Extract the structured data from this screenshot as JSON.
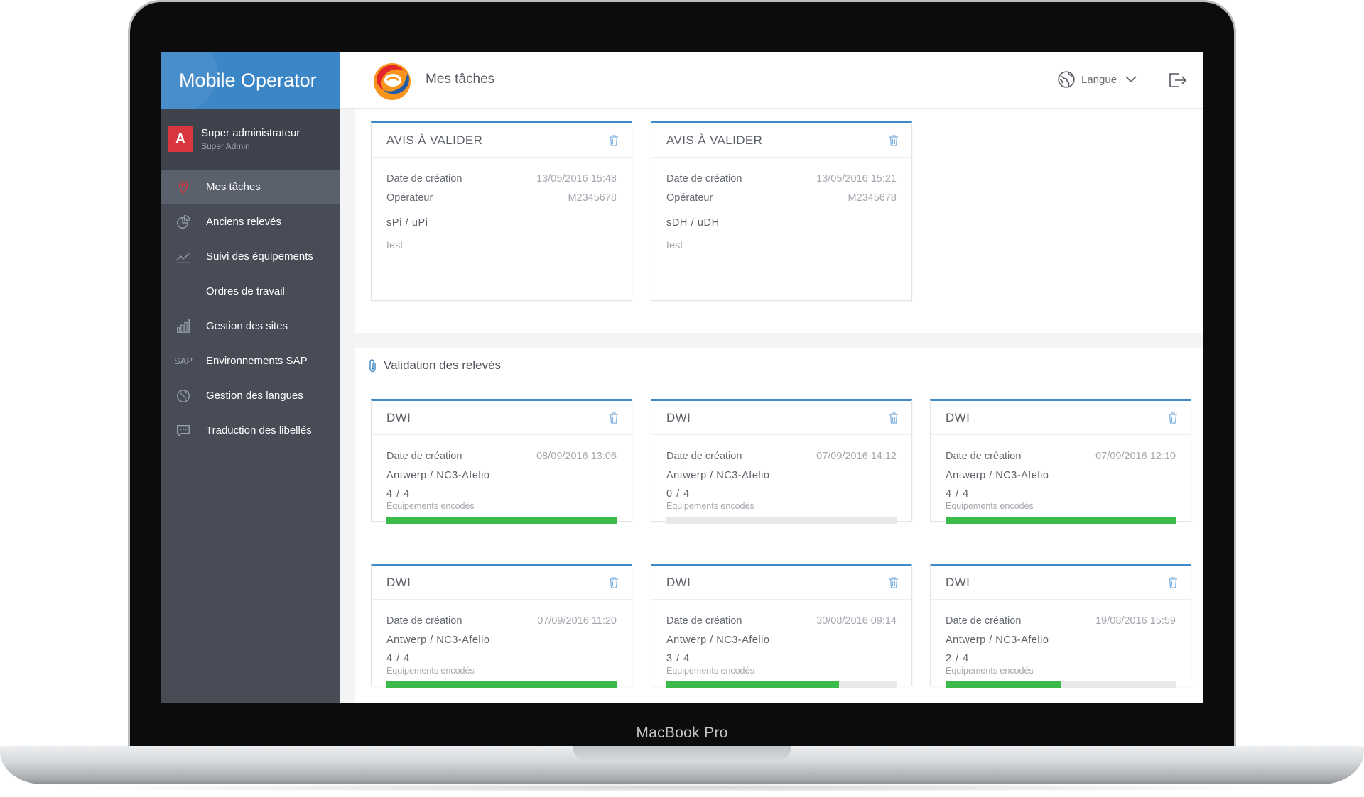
{
  "device": {
    "label": "MacBook Pro"
  },
  "sidebar": {
    "app_title": "Mobile Operator",
    "user": {
      "avatar_letter": "A",
      "name": "Super administrateur",
      "role": "Super Admin"
    },
    "items": [
      {
        "label": "Mes tâches",
        "icon": "map-pin-icon",
        "active": true
      },
      {
        "label": "Anciens relevés",
        "icon": "pie-chart-icon"
      },
      {
        "label": "Suivi des équipements",
        "icon": "trend-line-icon"
      },
      {
        "label": "Ordres de travail",
        "icon": ""
      },
      {
        "label": "Gestion des sites",
        "icon": "bar-chart-icon"
      },
      {
        "label": "Environnements SAP",
        "icon": "sap-icon",
        "icon_text": "SAP"
      },
      {
        "label": "Gestion des langues",
        "icon": "globe-icon"
      },
      {
        "label": "Traduction des libellés",
        "icon": "chat-bubble-icon"
      }
    ]
  },
  "header": {
    "page_title": "Mes tâches",
    "language_label": "Langue"
  },
  "notices": {
    "cards": [
      {
        "title": "AVIS À VALIDER",
        "created_label": "Date de création",
        "created_value": "13/05/2016 15:48",
        "operator_label": "Opérateur",
        "operator_value": "M2345678",
        "type": "sPi / uPi",
        "comment": "test"
      },
      {
        "title": "AVIS À VALIDER",
        "created_label": "Date de création",
        "created_value": "13/05/2016 15:21",
        "operator_label": "Opérateur",
        "operator_value": "M2345678",
        "type": "sDH / uDH",
        "comment": "test"
      }
    ]
  },
  "validation": {
    "title": "Validation des relevés",
    "cards": [
      {
        "title": "DWI",
        "created_label": "Date de création",
        "created_value": "08/09/2016 13:06",
        "location": "Antwerp / NC3-Afelio",
        "count": "4 / 4",
        "count_label": "Equipements encodés",
        "progress": 1.0
      },
      {
        "title": "DWI",
        "created_label": "Date de création",
        "created_value": "07/09/2016 14:12",
        "location": "Antwerp / NC3-Afelio",
        "count": "0 / 4",
        "count_label": "Equipements encodés",
        "progress": 0.0
      },
      {
        "title": "DWI",
        "created_label": "Date de création",
        "created_value": "07/09/2016 12:10",
        "location": "Antwerp / NC3-Afelio",
        "count": "4 / 4",
        "count_label": "Equipements encodés",
        "progress": 1.0
      },
      {
        "title": "DWI",
        "created_label": "Date de création",
        "created_value": "07/09/2016 11:20",
        "location": "Antwerp / NC3-Afelio",
        "count": "4 / 4",
        "count_label": "Equipements encodés",
        "progress": 1.0
      },
      {
        "title": "DWI",
        "created_label": "Date de création",
        "created_value": "30/08/2016 09:14",
        "location": "Antwerp / NC3-Afelio",
        "count": "3 / 4",
        "count_label": "Equipements encodés",
        "progress": 0.75
      },
      {
        "title": "DWI",
        "created_label": "Date de création",
        "created_value": "19/08/2016 15:59",
        "location": "Antwerp / NC3-Afelio",
        "count": "2 / 4",
        "count_label": "Equipements encodés",
        "progress": 0.5
      }
    ]
  },
  "colors": {
    "accent": "#3b86c6",
    "sidebar": "#474c57",
    "progress": "#3dbb4a",
    "avatar": "#d8373f"
  }
}
